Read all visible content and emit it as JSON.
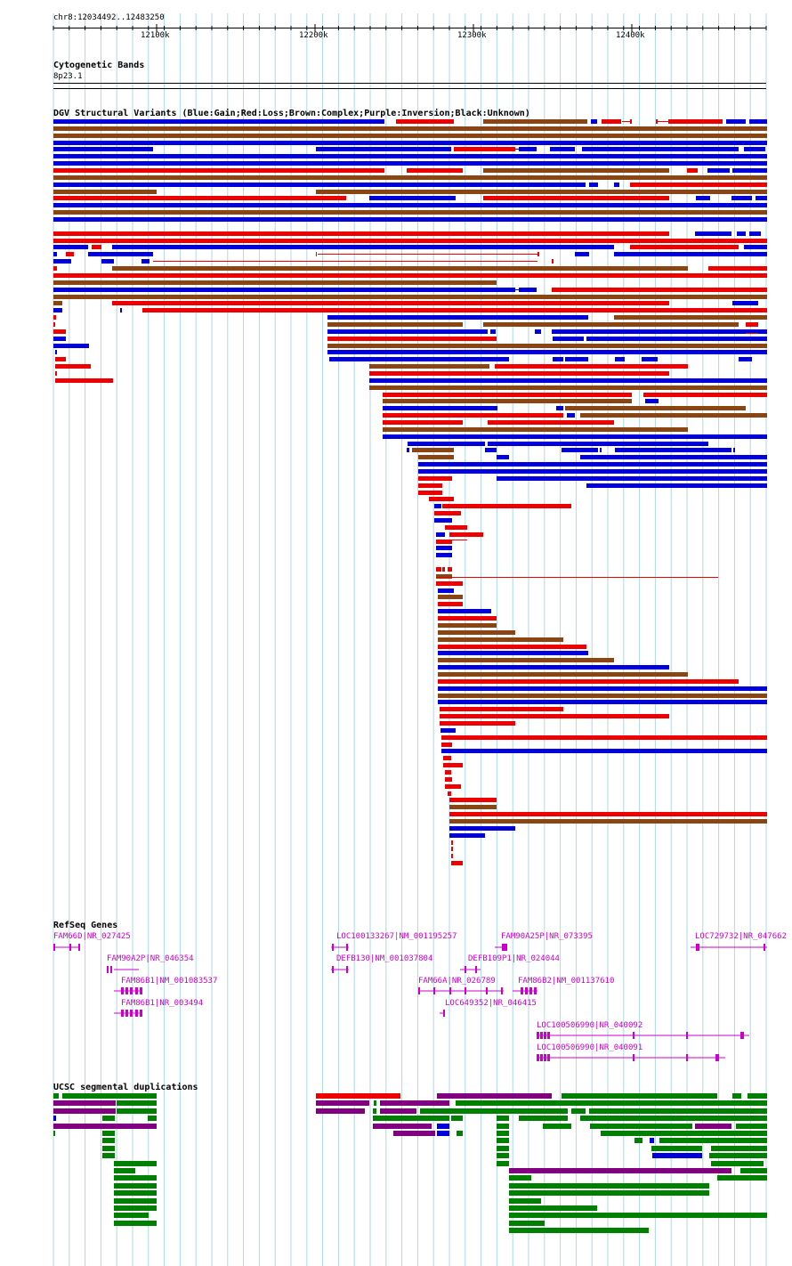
{
  "header": {
    "locus": "chr8:12034492..12483250",
    "ticks": [
      "12100k",
      "12200k",
      "12300k",
      "12400k"
    ]
  },
  "cytoband": {
    "title": "Cytogenetic Bands",
    "band": "8p23.1"
  },
  "dgv": {
    "title": "DGV Structural Variants (Blue:Gain;Red:Loss;Brown:Complex;Purple:Inversion;Black:Unknown)"
  },
  "refseq": {
    "title": "RefSeq Genes",
    "genes": [
      "FAM66D|NR_027425",
      "FAM90A2P|NR_046354",
      "FAM86B1|NM_001083537",
      "FAM86B1|NR_003494",
      "LOC100133267|NM_001195257",
      "DEFB130|NM_001037804",
      "FAM90A25P|NR_073395",
      "DEFB109P1|NR_024044",
      "FAM66A|NR_026789",
      "FAM86B2|NM_001137610",
      "LOC649352|NR_046415",
      "LOC100506990|NR_040092",
      "LOC100506990|NR_040091",
      "LOC729732|NR_047662"
    ]
  },
  "segdup": {
    "title": "UCSC segmental duplications"
  },
  "colors": {
    "gain": "#0000dd",
    "loss": "#ee0000",
    "complex": "#8b4513",
    "inversion": "#800080",
    "gene": "#cc00cc",
    "segdup_green": "#008000",
    "segdup_purple": "#800080",
    "segdup_red": "#ee0000",
    "grid": "#add8e6"
  }
}
